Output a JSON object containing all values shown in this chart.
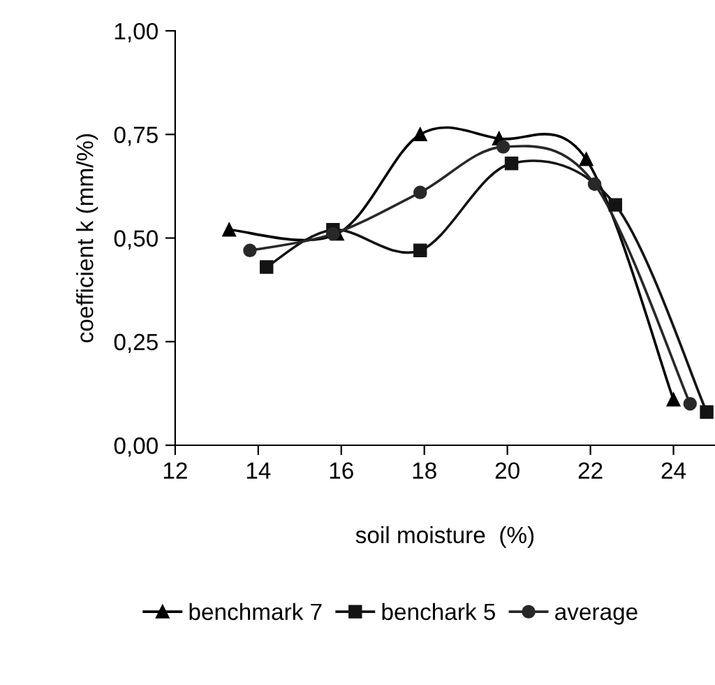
{
  "chart_data": {
    "type": "line",
    "xlabel": "soil moisture  (%)",
    "ylabel": "coefficient k (mm/%)",
    "xlim": [
      12,
      25
    ],
    "xticks": [
      12,
      14,
      16,
      18,
      20,
      22,
      24
    ],
    "ylim": [
      0,
      1
    ],
    "yticks": [
      {
        "value": 0,
        "label": "0,00"
      },
      {
        "value": 0.25,
        "label": "0,25"
      },
      {
        "value": 0.5,
        "label": "0,50"
      },
      {
        "value": 0.75,
        "label": "0,75"
      },
      {
        "value": 1,
        "label": "1,00"
      }
    ],
    "grid": false,
    "legend": "bottom",
    "line_style": "solid",
    "series": [
      {
        "name": "benchmark 7",
        "color": "#000000",
        "marker": "triangle",
        "x": [
          13.3,
          15.9,
          17.9,
          19.8,
          21.9,
          24.0
        ],
        "values": [
          0.52,
          0.51,
          0.75,
          0.74,
          0.69,
          0.11
        ]
      },
      {
        "name": "benchark 5",
        "color": "#141414",
        "marker": "square",
        "x": [
          14.2,
          15.8,
          17.9,
          20.1,
          22.6,
          24.8
        ],
        "values": [
          0.43,
          0.52,
          0.47,
          0.68,
          0.58,
          0.08
        ]
      },
      {
        "name": "average",
        "color": "#282828",
        "marker": "circle",
        "x": [
          13.8,
          15.8,
          17.9,
          19.9,
          22.1,
          24.4
        ],
        "values": [
          0.47,
          0.51,
          0.61,
          0.72,
          0.63,
          0.1
        ]
      }
    ]
  }
}
